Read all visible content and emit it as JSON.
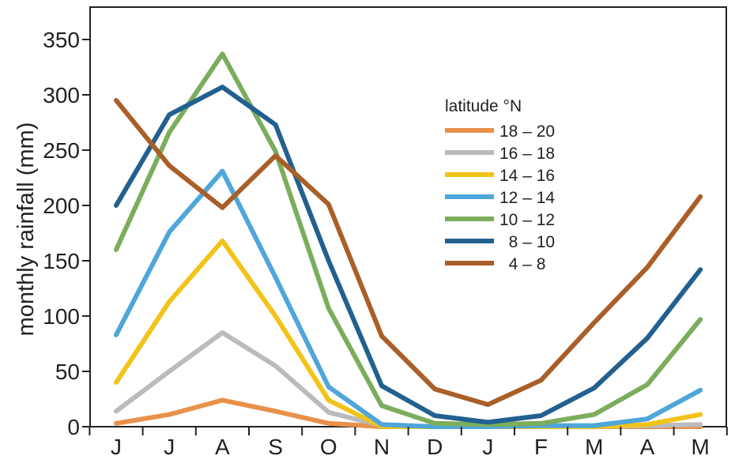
{
  "chart_data": {
    "type": "line",
    "title": "",
    "xlabel": "",
    "ylabel": "monthly rainfall (mm)",
    "categories": [
      "J",
      "J",
      "A",
      "S",
      "O",
      "N",
      "D",
      "J",
      "F",
      "M",
      "A",
      "M"
    ],
    "ylim": [
      0,
      380
    ],
    "yticks": [
      0,
      50,
      100,
      150,
      200,
      250,
      300,
      350
    ],
    "grid": false,
    "legend": {
      "title": "latitude °N",
      "placement": "top-right"
    },
    "series": [
      {
        "name": "18 – 20",
        "color": "#e8914a",
        "values": [
          3,
          11,
          24,
          14,
          3,
          0,
          0,
          0,
          0,
          0,
          0,
          0
        ]
      },
      {
        "name": "16 – 18",
        "color": "#b9bbbe",
        "values": [
          14,
          50,
          85,
          55,
          13,
          1,
          0,
          0,
          0,
          0,
          1,
          2
        ]
      },
      {
        "name": "14 – 16",
        "color": "#f2c318",
        "values": [
          40,
          113,
          168,
          100,
          24,
          0,
          0,
          0,
          0,
          0,
          2,
          11
        ]
      },
      {
        "name": "12 – 14",
        "color": "#4fa6d9",
        "values": [
          83,
          176,
          231,
          135,
          36,
          2,
          0,
          0,
          1,
          1,
          7,
          33
        ]
      },
      {
        "name": "10 – 12",
        "color": "#7bad5c",
        "values": [
          160,
          266,
          337,
          249,
          107,
          19,
          3,
          2,
          3,
          11,
          38,
          97
        ]
      },
      {
        "name": "  8 – 10",
        "color": "#22608f",
        "values": [
          200,
          282,
          307,
          273,
          150,
          37,
          10,
          4,
          10,
          35,
          80,
          142
        ]
      },
      {
        "name": "  4 – 8",
        "color": "#a95f28",
        "values": [
          295,
          236,
          198,
          245,
          201,
          82,
          34,
          20,
          42,
          94,
          144,
          208
        ]
      }
    ]
  }
}
